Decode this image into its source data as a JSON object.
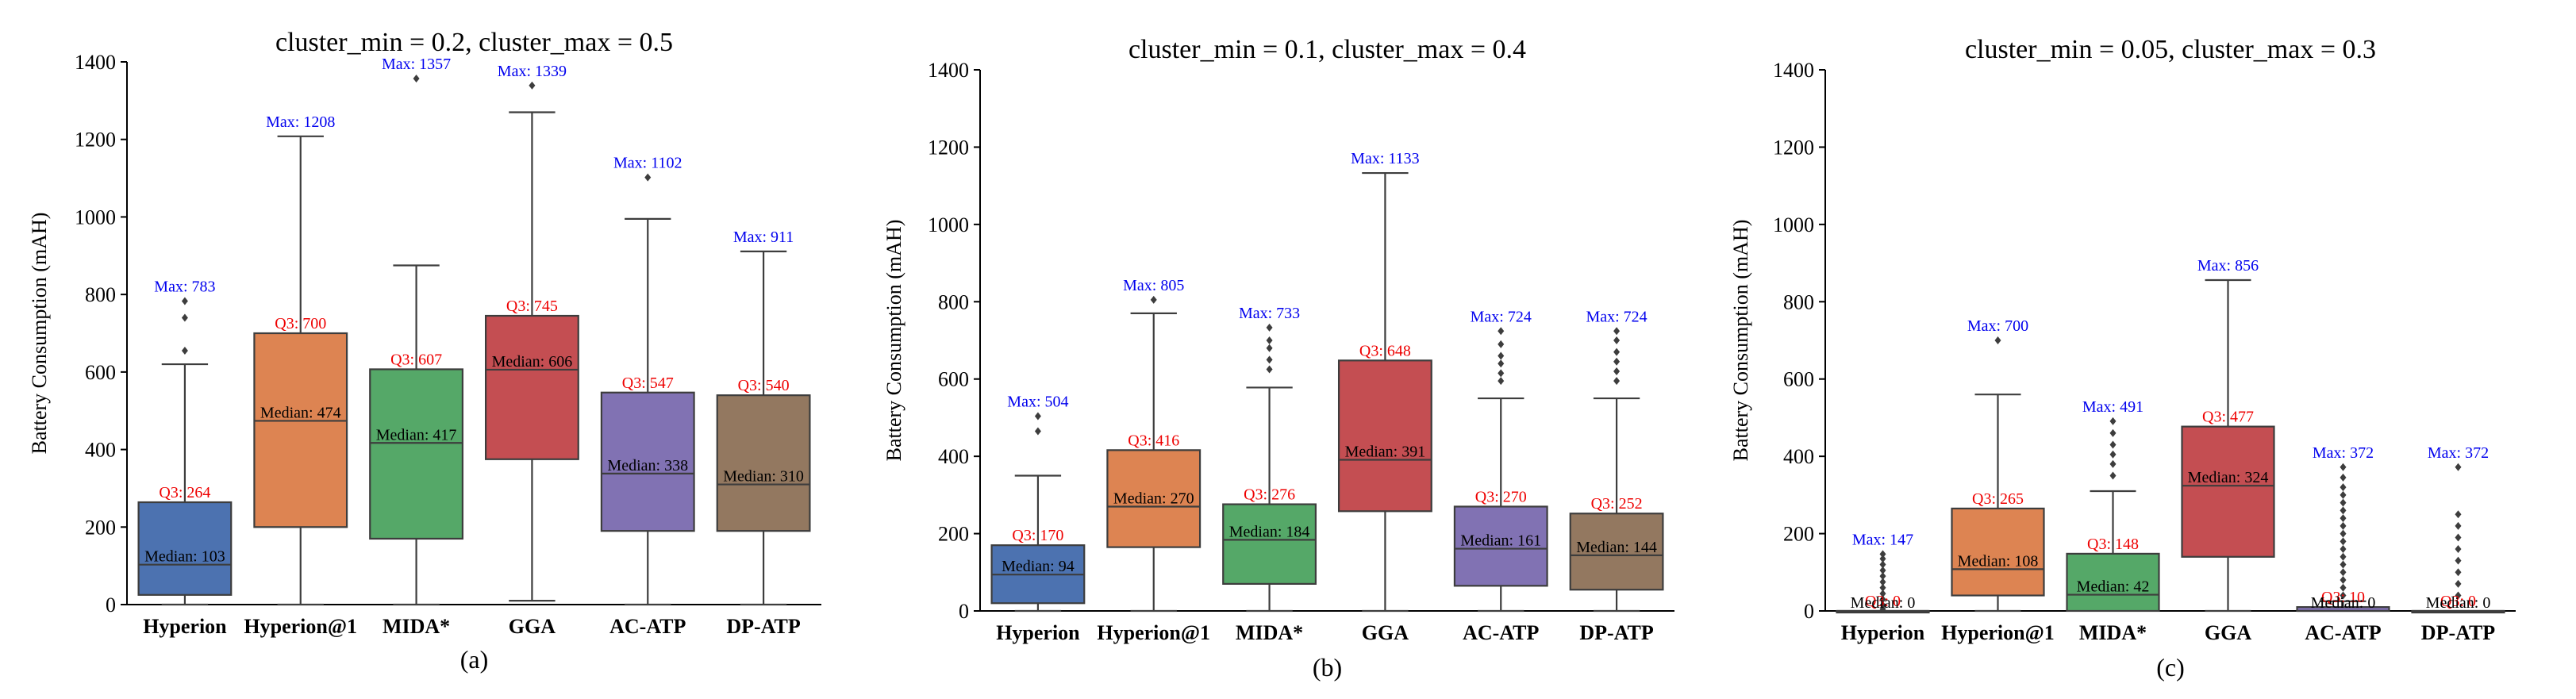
{
  "chart_data": [
    {
      "type": "boxplot",
      "title": "cluster_min = 0.2, cluster_max = 0.5",
      "subplot_label": "(a)",
      "ylabel": "Battery Consumption (mAH)",
      "ylim": [
        0,
        1400
      ],
      "yticks": [
        "0",
        "200",
        "400",
        "600",
        "800",
        "1000",
        "1200",
        "1400"
      ],
      "categories": [
        "Hyperion",
        "Hyperion@1",
        "MIDA*",
        "GGA",
        "AC-ATP",
        "DP-ATP"
      ],
      "colors": [
        "#4c72b0",
        "#dd8452",
        "#55a868",
        "#c44e52",
        "#8172b3",
        "#937860"
      ],
      "boxes": [
        {
          "q1": 25,
          "median": 103,
          "q3": 264,
          "whisker_low": 0,
          "whisker_high": 620,
          "outliers": [
            655,
            740,
            783
          ],
          "max": 783,
          "label_max": "Max: 783",
          "label_q3": "Q3: 264",
          "label_median": "Median: 103"
        },
        {
          "q1": 200,
          "median": 474,
          "q3": 700,
          "whisker_low": 0,
          "whisker_high": 1208,
          "outliers": [],
          "max": 1208,
          "label_max": "Max: 1208",
          "label_q3": "Q3: 700",
          "label_median": "Median: 474"
        },
        {
          "q1": 170,
          "median": 417,
          "q3": 607,
          "whisker_low": 0,
          "whisker_high": 875,
          "outliers": [
            1357
          ],
          "max": 1357,
          "label_max": "Max: 1357",
          "label_q3": "Q3: 607",
          "label_median": "Median: 417"
        },
        {
          "q1": 375,
          "median": 606,
          "q3": 745,
          "whisker_low": 10,
          "whisker_high": 1270,
          "outliers": [
            1339
          ],
          "max": 1339,
          "label_max": "Max: 1339",
          "label_q3": "Q3: 745",
          "label_median": "Median: 606"
        },
        {
          "q1": 190,
          "median": 338,
          "q3": 547,
          "whisker_low": 0,
          "whisker_high": 995,
          "outliers": [
            1102
          ],
          "max": 1102,
          "label_max": "Max: 1102",
          "label_q3": "Q3: 547",
          "label_median": "Median: 338"
        },
        {
          "q1": 190,
          "median": 310,
          "q3": 540,
          "whisker_low": 0,
          "whisker_high": 911,
          "outliers": [],
          "max": 911,
          "label_max": "Max: 911",
          "label_q3": "Q3: 540",
          "label_median": "Median: 310"
        }
      ]
    },
    {
      "type": "boxplot",
      "title": "cluster_min = 0.1, cluster_max = 0.4",
      "subplot_label": "(b)",
      "ylabel": "Battery Consumption (mAH)",
      "ylim": [
        0,
        1400
      ],
      "yticks": [
        "0",
        "200",
        "400",
        "600",
        "800",
        "1000",
        "1200",
        "1400"
      ],
      "categories": [
        "Hyperion",
        "Hyperion@1",
        "MIDA*",
        "GGA",
        "AC-ATP",
        "DP-ATP"
      ],
      "colors": [
        "#4c72b0",
        "#dd8452",
        "#55a868",
        "#c44e52",
        "#8172b3",
        "#937860"
      ],
      "boxes": [
        {
          "q1": 20,
          "median": 94,
          "q3": 170,
          "whisker_low": 0,
          "whisker_high": 350,
          "outliers": [
            465,
            504
          ],
          "max": 504,
          "label_max": "Max: 504",
          "label_q3": "Q3: 170",
          "label_median": "Median: 94"
        },
        {
          "q1": 165,
          "median": 270,
          "q3": 416,
          "whisker_low": 0,
          "whisker_high": 770,
          "outliers": [
            805
          ],
          "max": 805,
          "label_max": "Max: 805",
          "label_q3": "Q3: 416",
          "label_median": "Median: 270"
        },
        {
          "q1": 70,
          "median": 184,
          "q3": 276,
          "whisker_low": 0,
          "whisker_high": 578,
          "outliers": [
            625,
            650,
            680,
            700,
            733
          ],
          "max": 733,
          "label_max": "Max: 733",
          "label_q3": "Q3: 276",
          "label_median": "Median: 184"
        },
        {
          "q1": 258,
          "median": 391,
          "q3": 648,
          "whisker_low": 0,
          "whisker_high": 1133,
          "outliers": [],
          "max": 1133,
          "label_max": "Max: 1133",
          "label_q3": "Q3: 648",
          "label_median": "Median: 391"
        },
        {
          "q1": 65,
          "median": 161,
          "q3": 270,
          "whisker_low": 0,
          "whisker_high": 550,
          "outliers": [
            595,
            615,
            640,
            660,
            690,
            724
          ],
          "max": 724,
          "label_max": "Max: 724",
          "label_q3": "Q3: 270",
          "label_median": "Median: 161"
        },
        {
          "q1": 55,
          "median": 144,
          "q3": 252,
          "whisker_low": 0,
          "whisker_high": 550,
          "outliers": [
            595,
            620,
            645,
            670,
            700,
            724
          ],
          "max": 724,
          "label_max": "Max: 724",
          "label_q3": "Q3: 252",
          "label_median": "Median: 144"
        }
      ]
    },
    {
      "type": "boxplot",
      "title": "cluster_min = 0.05, cluster_max = 0.3",
      "subplot_label": "(c)",
      "ylabel": "Battery Consumption (mAH)",
      "ylim": [
        0,
        1400
      ],
      "yticks": [
        "0",
        "200",
        "400",
        "600",
        "800",
        "1000",
        "1200",
        "1400"
      ],
      "categories": [
        "Hyperion",
        "Hyperion@1",
        "MIDA*",
        "GGA",
        "AC-ATP",
        "DP-ATP"
      ],
      "colors": [
        "#4c72b0",
        "#dd8452",
        "#55a868",
        "#c44e52",
        "#8172b3",
        "#937860"
      ],
      "boxes": [
        {
          "q1": 0,
          "median": 0,
          "q3": 0,
          "whisker_low": 0,
          "whisker_high": 0,
          "outliers": [
            5,
            15,
            30,
            45,
            60,
            75,
            90,
            105,
            120,
            135,
            147
          ],
          "max": 147,
          "label_max": "Max: 147",
          "label_q3": "Q3: 0",
          "label_median": "Median: 0"
        },
        {
          "q1": 40,
          "median": 108,
          "q3": 265,
          "whisker_low": 0,
          "whisker_high": 560,
          "outliers": [
            700
          ],
          "max": 700,
          "label_max": "Max: 700",
          "label_q3": "Q3: 265",
          "label_median": "Median: 108"
        },
        {
          "q1": 0,
          "median": 42,
          "q3": 148,
          "whisker_low": 0,
          "whisker_high": 310,
          "outliers": [
            350,
            380,
            405,
            430,
            460,
            491
          ],
          "max": 491,
          "label_max": "Max: 491",
          "label_q3": "Q3: 148",
          "label_median": "Median: 42"
        },
        {
          "q1": 140,
          "median": 324,
          "q3": 477,
          "whisker_low": 0,
          "whisker_high": 856,
          "outliers": [],
          "max": 856,
          "label_max": "Max: 856",
          "label_q3": "Q3: 477",
          "label_median": "Median: 324"
        },
        {
          "q1": 0,
          "median": 0,
          "q3": 10,
          "whisker_low": 0,
          "whisker_high": 25,
          "outliers": [
            40,
            60,
            80,
            100,
            120,
            140,
            160,
            180,
            200,
            220,
            240,
            260,
            280,
            300,
            320,
            345,
            372
          ],
          "max": 372,
          "label_max": "Max: 372",
          "label_q3": "Q3: 10",
          "label_median": "Median: 0"
        },
        {
          "q1": 0,
          "median": 0,
          "q3": 0,
          "whisker_low": 0,
          "whisker_high": 0,
          "outliers": [
            40,
            70,
            100,
            130,
            160,
            190,
            220,
            250,
            372
          ],
          "max": 372,
          "label_max": "Max: 372",
          "label_q3": "Q3: 0",
          "label_median": "Median: 0"
        }
      ]
    }
  ]
}
